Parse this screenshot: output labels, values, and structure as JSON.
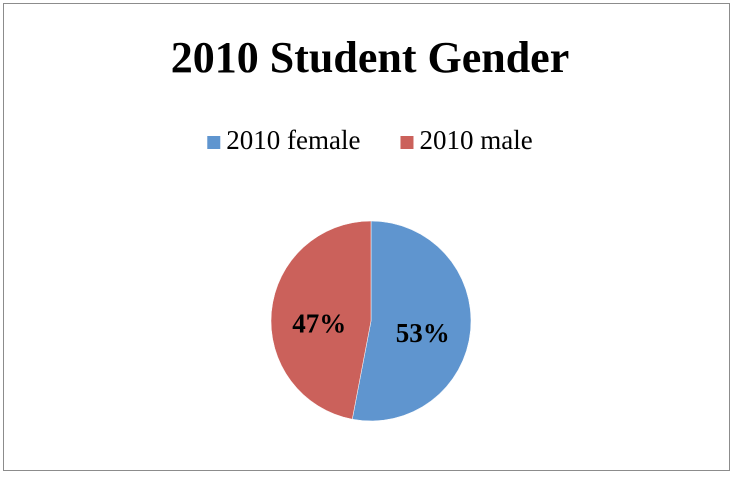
{
  "chart_data": {
    "type": "pie",
    "title": "2010 Student Gender",
    "categories": [
      "2010 female",
      "2010 male"
    ],
    "values": [
      53,
      47
    ],
    "value_labels": [
      "53%",
      "47%"
    ],
    "colors": [
      "#5f95cf",
      "#cb615b"
    ],
    "legend": "top"
  }
}
